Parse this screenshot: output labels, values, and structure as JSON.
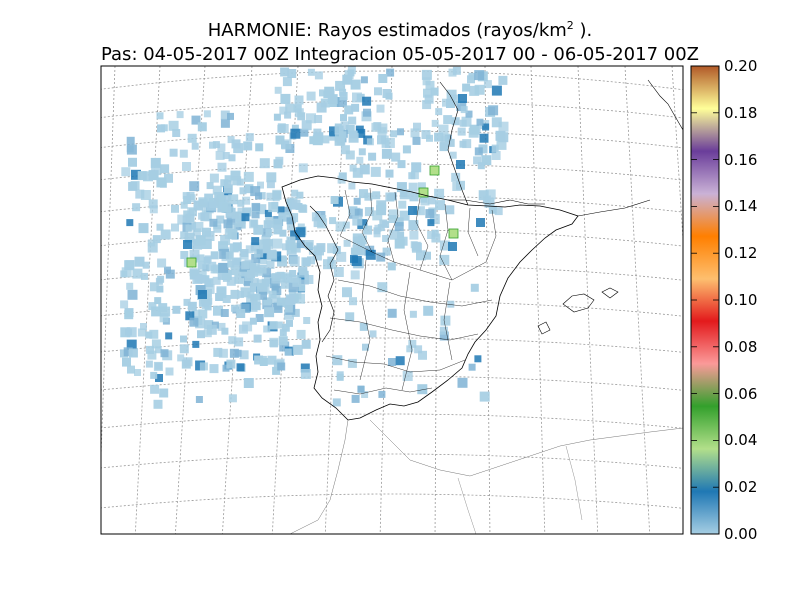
{
  "title": {
    "line1_main": "HARMONIE: Rayos estimados  (rayos/km",
    "line1_sup": "2",
    "line1_end": " ).",
    "line2": "Pas: 04-05-2017 00Z Integracion 05-05-2017 00 - 06-05-2017 00Z"
  },
  "colorbar": {
    "ticks": [
      "0.00",
      "0.02",
      "0.04",
      "0.06",
      "0.08",
      "0.10",
      "0.12",
      "0.14",
      "0.16",
      "0.18",
      "0.20"
    ],
    "colors": [
      "#a6cee3",
      "#1f78b4",
      "#b2df8a",
      "#33a02c",
      "#fb9a99",
      "#e31a1c",
      "#fdbf6f",
      "#ff7f00",
      "#cab2d6",
      "#6a3d9a",
      "#ffff99",
      "#b15928"
    ]
  },
  "styles": {
    "light_cell": "#a6cee3",
    "mid_cell": "#7fb3d5",
    "dark_cell": "#1f78b4",
    "green_cell": "#b2df8a",
    "coast": "#000000",
    "graticule": "#999999"
  }
}
